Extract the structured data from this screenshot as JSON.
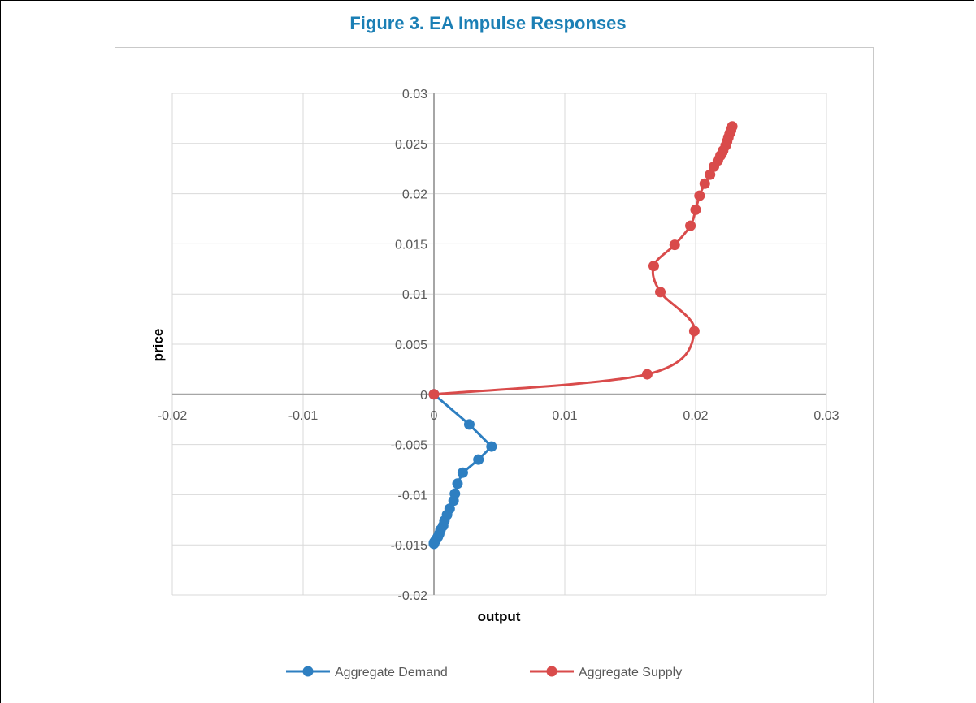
{
  "figure": {
    "title": "Figure 3. EA Impulse Responses"
  },
  "colors": {
    "demand": "#2e7fc1",
    "supply": "#d94b4b",
    "grid": "#d9d9d9",
    "axis": "#a6a6a6"
  },
  "chart_data": {
    "type": "scatter",
    "xlabel": "output",
    "ylabel": "price",
    "xlim": [
      -0.02,
      0.03
    ],
    "ylim": [
      -0.02,
      0.03
    ],
    "x_ticks": [
      "-0.02",
      "-0.01",
      "0",
      "0.01",
      "0.02",
      "0.03"
    ],
    "y_ticks": [
      "0.03",
      "0.025",
      "0.02",
      "0.015",
      "0.01",
      "0.005",
      "0",
      "-0.005",
      "-0.01",
      "-0.015",
      "-0.02"
    ],
    "grid": true,
    "legend": "bottom",
    "series": [
      {
        "name": "Aggregate Demand",
        "color": "#2e7fc1",
        "smooth": false,
        "points": [
          [
            0,
            0
          ],
          [
            0.0027,
            -0.003
          ],
          [
            0.0044,
            -0.0052
          ],
          [
            0.0034,
            -0.0065
          ],
          [
            0.0022,
            -0.0078
          ],
          [
            0.0018,
            -0.0089
          ],
          [
            0.0016,
            -0.0099
          ],
          [
            0.0015,
            -0.0106
          ],
          [
            0.0012,
            -0.0114
          ],
          [
            0.001,
            -0.012
          ],
          [
            0.0008,
            -0.0126
          ],
          [
            0.0007,
            -0.0131
          ],
          [
            0.0005,
            -0.0135
          ],
          [
            0.0004,
            -0.0139
          ],
          [
            0.0003,
            -0.0142
          ],
          [
            0.0002,
            -0.0144
          ],
          [
            0.0001,
            -0.0146
          ],
          [
            5e-05,
            -0.0147
          ],
          [
            0.0,
            -0.0148
          ],
          [
            0.0,
            -0.0149
          ]
        ]
      },
      {
        "name": "Aggregate Supply",
        "color": "#d94b4b",
        "smooth": true,
        "points": [
          [
            0,
            0
          ],
          [
            0.0163,
            0.002
          ],
          [
            0.0199,
            0.0063
          ],
          [
            0.0173,
            0.0102
          ],
          [
            0.0168,
            0.0128
          ],
          [
            0.0184,
            0.0149
          ],
          [
            0.0196,
            0.0168
          ],
          [
            0.02,
            0.0184
          ],
          [
            0.0203,
            0.0198
          ],
          [
            0.0207,
            0.021
          ],
          [
            0.0211,
            0.0219
          ],
          [
            0.0214,
            0.0227
          ],
          [
            0.0217,
            0.0233
          ],
          [
            0.0219,
            0.0238
          ],
          [
            0.0221,
            0.0243
          ],
          [
            0.0223,
            0.0248
          ],
          [
            0.0224,
            0.0252
          ],
          [
            0.0225,
            0.0256
          ],
          [
            0.0226,
            0.026
          ],
          [
            0.0227,
            0.0263
          ],
          [
            0.0227,
            0.0265
          ],
          [
            0.0228,
            0.0267
          ]
        ]
      }
    ]
  }
}
